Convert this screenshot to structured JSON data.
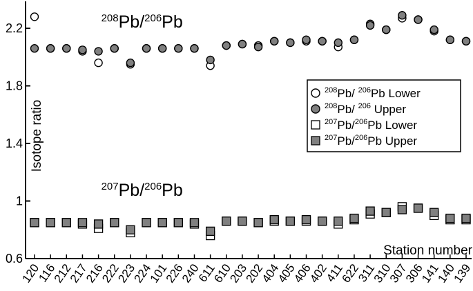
{
  "chart_data": {
    "type": "scatter",
    "title": "",
    "xlabel": "Station number",
    "ylabel": "Isotope ratio",
    "ylim": [
      0.6,
      2.4
    ],
    "yticks": [
      "0.6",
      "1",
      "1.4",
      "1.8",
      "2.2"
    ],
    "grid": false,
    "legend_position": "right",
    "categories": [
      "120",
      "116",
      "212",
      "217",
      "216",
      "222",
      "223",
      "224",
      "101",
      "226",
      "240",
      "611",
      "610",
      "203",
      "202",
      "404",
      "405",
      "406",
      "402",
      "411",
      "622",
      "311",
      "310",
      "307",
      "306",
      "141",
      "140",
      "139"
    ],
    "annotations": [
      {
        "id": "pb208",
        "sup1": "208",
        "base1": "Pb/",
        "sup2": "206",
        "base2": "Pb",
        "x_category": "216",
        "y": 2.2
      },
      {
        "id": "pb207",
        "sup1": "207",
        "base1": "Pb/",
        "sup2": "206",
        "base2": "Pb",
        "x_category": "216",
        "y": 1.03
      }
    ],
    "series": [
      {
        "name": "208Pb/206Pb Lower",
        "legend": {
          "sup1": "208",
          "base1": "Pb/ ",
          "sup2": "206",
          "base2": "Pb Lower"
        },
        "marker": "circle",
        "fill": "#ffffff",
        "values": [
          2.28,
          2.06,
          2.06,
          2.04,
          1.96,
          2.06,
          1.95,
          2.06,
          2.06,
          2.06,
          2.06,
          1.94,
          2.08,
          2.09,
          2.08,
          2.11,
          2.1,
          2.11,
          2.11,
          2.07,
          2.12,
          2.23,
          2.19,
          2.27,
          2.26,
          2.18,
          2.12,
          2.11
        ]
      },
      {
        "name": "208Pb/206 Upper",
        "legend": {
          "sup1": "208",
          "base1": "Pb/ ",
          "sup2": "206",
          "base2": " Upper"
        },
        "marker": "circle",
        "fill": "#808080",
        "values": [
          2.06,
          2.06,
          2.06,
          2.05,
          2.04,
          2.06,
          1.96,
          2.06,
          2.06,
          2.06,
          2.06,
          1.98,
          2.08,
          2.09,
          2.07,
          2.11,
          2.1,
          2.12,
          2.11,
          2.1,
          2.12,
          2.22,
          2.19,
          2.29,
          2.26,
          2.19,
          2.12,
          2.11
        ]
      },
      {
        "name": "207Pb/206Pb Lower",
        "legend": {
          "sup1": "207",
          "base1": "Pb/",
          "sup2": "206",
          "base2": "Pb Lower"
        },
        "marker": "square",
        "fill": "#ffffff",
        "values": [
          0.85,
          0.85,
          0.85,
          0.84,
          0.81,
          0.85,
          0.78,
          0.85,
          0.85,
          0.85,
          0.84,
          0.76,
          0.86,
          0.86,
          0.85,
          0.86,
          0.86,
          0.86,
          0.86,
          0.84,
          0.87,
          0.91,
          0.92,
          0.96,
          0.95,
          0.9,
          0.87,
          0.87
        ]
      },
      {
        "name": "207Pb/206Pb Upper",
        "legend": {
          "sup1": "207",
          "base1": "Pb/",
          "sup2": "206",
          "base2": "Pb Upper"
        },
        "marker": "square",
        "fill": "#808080",
        "values": [
          0.85,
          0.85,
          0.85,
          0.85,
          0.84,
          0.85,
          0.8,
          0.85,
          0.85,
          0.85,
          0.85,
          0.79,
          0.86,
          0.86,
          0.85,
          0.87,
          0.86,
          0.87,
          0.86,
          0.86,
          0.88,
          0.93,
          0.92,
          0.94,
          0.95,
          0.92,
          0.88,
          0.88
        ]
      }
    ]
  }
}
